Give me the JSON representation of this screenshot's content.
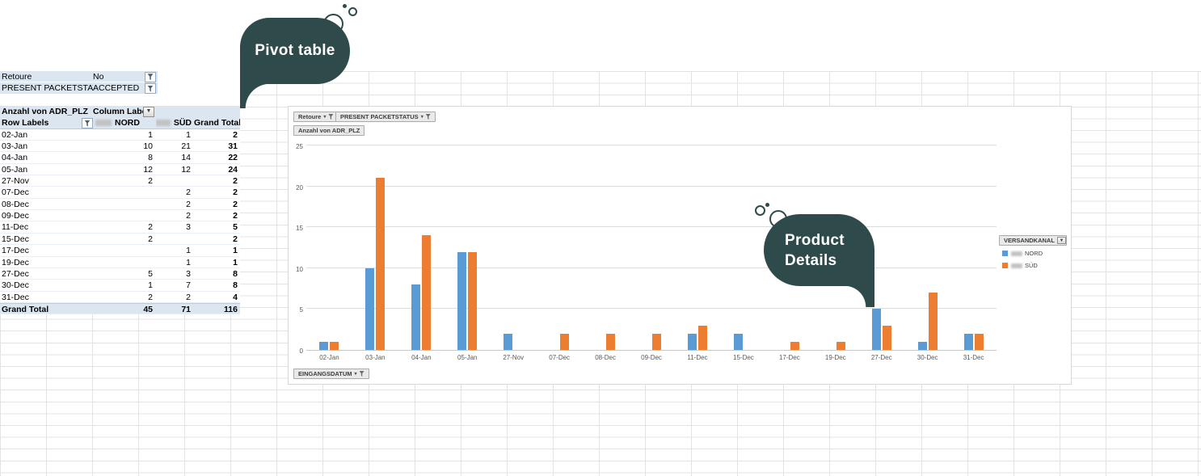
{
  "annotations": {
    "pivot": {
      "label": "Pivot table"
    },
    "product": {
      "line1": "Product",
      "line2": "Details"
    }
  },
  "pivot_table": {
    "filters": [
      {
        "field": "Retoure",
        "value": "No"
      },
      {
        "field": "PRESENT PACKETSTATUS",
        "value": "ACCEPTED"
      }
    ],
    "measure_label": "Anzahl von ADR_PLZ",
    "column_labels_header": "Column Labels",
    "row_labels_header": "Row Labels",
    "columns": [
      "NORD",
      "SÜD",
      "Grand Total"
    ],
    "rows": [
      [
        "02-Jan",
        "1",
        "1",
        "2"
      ],
      [
        "03-Jan",
        "10",
        "21",
        "31"
      ],
      [
        "04-Jan",
        "8",
        "14",
        "22"
      ],
      [
        "05-Jan",
        "12",
        "12",
        "24"
      ],
      [
        "27-Nov",
        "2",
        "",
        "2"
      ],
      [
        "07-Dec",
        "",
        "2",
        "2"
      ],
      [
        "08-Dec",
        "",
        "2",
        "2"
      ],
      [
        "09-Dec",
        "",
        "2",
        "2"
      ],
      [
        "11-Dec",
        "2",
        "3",
        "5"
      ],
      [
        "15-Dec",
        "2",
        "",
        "2"
      ],
      [
        "17-Dec",
        "",
        "1",
        "1"
      ],
      [
        "19-Dec",
        "",
        "1",
        "1"
      ],
      [
        "27-Dec",
        "5",
        "3",
        "8"
      ],
      [
        "30-Dec",
        "1",
        "7",
        "8"
      ],
      [
        "31-Dec",
        "2",
        "2",
        "4"
      ]
    ],
    "grand_total": [
      "Grand Total",
      "45",
      "71",
      "116"
    ]
  },
  "chart": {
    "buttons": {
      "retoure": "Retoure",
      "packetstatus": "PRESENT PACKETSTATUS",
      "value": "Anzahl von ADR_PLZ",
      "axis": "EINGANGSDATUM",
      "legend": "VERSANDKANAL"
    },
    "legend_items": [
      {
        "label": "NORD",
        "color": "#5B9BD5"
      },
      {
        "label": "SÜD",
        "color": "#ED7D31"
      }
    ]
  },
  "chart_data": {
    "type": "bar",
    "title": "",
    "xlabel": "EINGANGSDATUM",
    "ylabel": "Anzahl von ADR_PLZ",
    "categories": [
      "02-Jan",
      "03-Jan",
      "04-Jan",
      "05-Jan",
      "27-Nov",
      "07-Dec",
      "08-Dec",
      "09-Dec",
      "11-Dec",
      "15-Dec",
      "17-Dec",
      "19-Dec",
      "27-Dec",
      "30-Dec",
      "31-Dec"
    ],
    "series": [
      {
        "name": "NORD",
        "color": "#5B9BD5",
        "values": [
          1,
          10,
          8,
          12,
          2,
          0,
          0,
          0,
          2,
          2,
          0,
          0,
          5,
          1,
          2
        ]
      },
      {
        "name": "SÜD",
        "color": "#ED7D31",
        "values": [
          1,
          21,
          14,
          12,
          0,
          2,
          2,
          2,
          3,
          0,
          1,
          1,
          3,
          7,
          2
        ]
      }
    ],
    "ylim": [
      0,
      25
    ],
    "yticks": [
      0,
      5,
      10,
      15,
      20,
      25
    ],
    "grid": true,
    "legend_position": "right"
  },
  "colors": {
    "nord": "#5B9BD5",
    "sud": "#ED7D31",
    "bubble": "#2e4a4a",
    "header_fill": "#dce6f1"
  }
}
